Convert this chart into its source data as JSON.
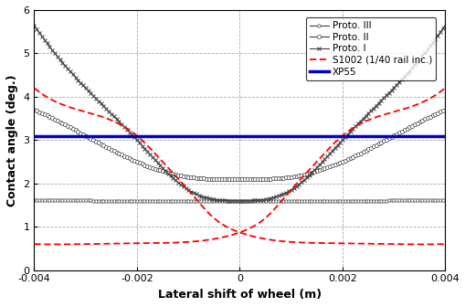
{
  "title": "",
  "xlabel": "Lateral shift of wheel (m)",
  "ylabel": "Contact angle (deg.)",
  "xlim": [
    -0.004,
    0.004
  ],
  "ylim": [
    0,
    6
  ],
  "xp55_value": 3.1,
  "legend_labels": [
    "XP55",
    "S1002 (1/40 rail inc.)",
    "Proto. I",
    "Proto. II",
    "Proto. III"
  ],
  "grid_color": "#a0a0a0",
  "background_color": "#ffffff",
  "line_color_xp55": "#0000cc",
  "line_color_s1002": "#ff0000",
  "line_color_proto": "#404040"
}
